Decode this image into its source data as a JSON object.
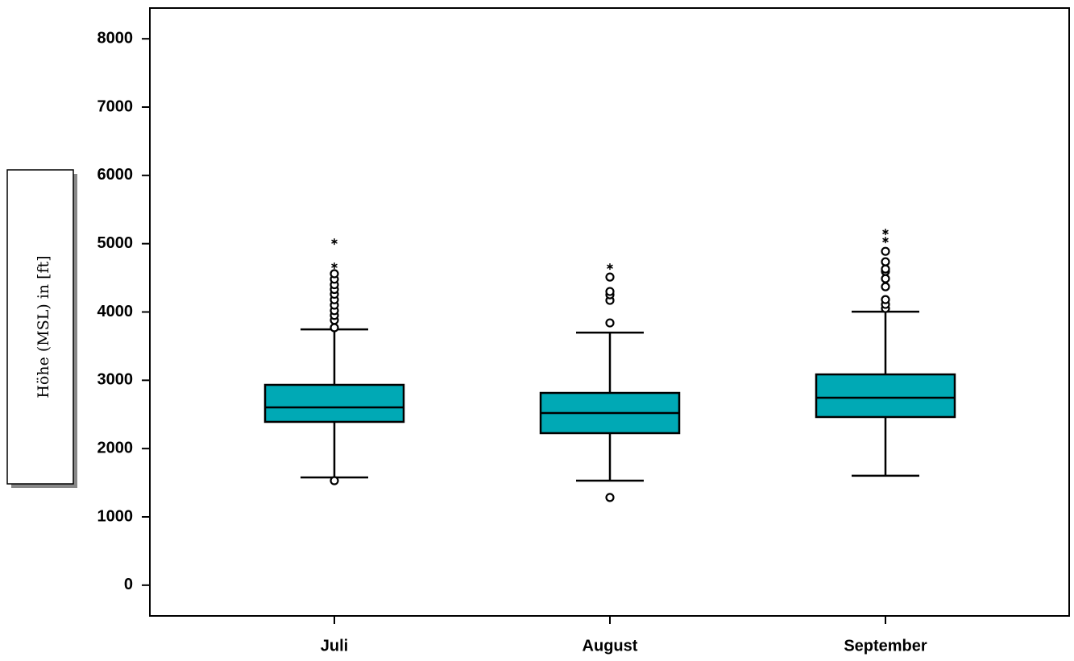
{
  "chart_data": {
    "type": "box",
    "y_label": "Höhe (MSL) in [ft]",
    "categories": [
      "Juli",
      "August",
      "September"
    ],
    "color": "#00a9b5",
    "boxes": [
      {
        "whisker_low": 1578,
        "q1": 2391,
        "median": 2603,
        "q3": 2933,
        "whisker_high": 3745,
        "outliers": [
          1530,
          3770,
          3880,
          3950,
          4020,
          4100,
          4180,
          4260,
          4330,
          4400,
          4480,
          4560
        ],
        "extremes": [
          4676,
          5030
        ]
      },
      {
        "whisker_low": 1531,
        "q1": 2226,
        "median": 2521,
        "q3": 2815,
        "whisker_high": 3698,
        "outliers": [
          1284,
          3840,
          4170,
          4252,
          4300,
          4511
        ],
        "extremes": [
          4664
        ]
      },
      {
        "whisker_low": 1602,
        "q1": 2462,
        "median": 2744,
        "q3": 3086,
        "whisker_high": 4005,
        "outliers": [
          4052,
          4111,
          4181,
          4370,
          4488,
          4594,
          4629,
          4735,
          4888
        ],
        "extremes": [
          5053,
          5171
        ]
      }
    ],
    "ylim": [
      -450,
      8450
    ],
    "yticks": [
      0,
      1000,
      2000,
      3000,
      4000,
      5000,
      6000,
      7000,
      8000
    ]
  }
}
